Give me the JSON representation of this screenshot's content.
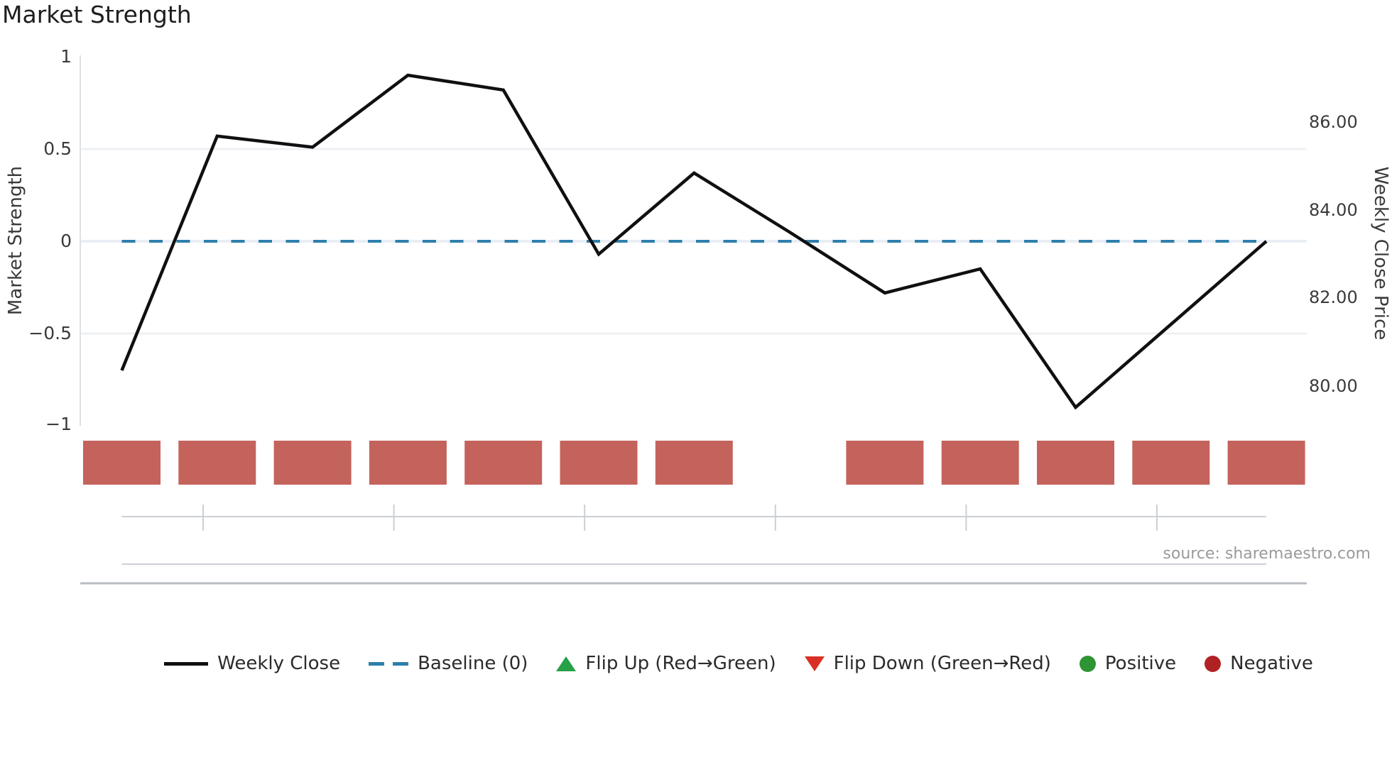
{
  "title": "Market Strength",
  "source": "source: sharemaestro.com",
  "axes": {
    "left": {
      "label": "Market Strength",
      "ticks": [
        "1",
        "0.5",
        "0",
        "−0.5",
        "−1"
      ]
    },
    "right": {
      "label": "Weekly Close Price",
      "ticks": [
        "86.00",
        "84.00",
        "82.00",
        "80.00"
      ]
    }
  },
  "legend": {
    "items": [
      {
        "label": "Weekly Close",
        "marker": "black-line"
      },
      {
        "label": "Baseline (0)",
        "marker": "blue-dashed-line"
      },
      {
        "label": "Flip Up (Red→Green)",
        "marker": "green-up-triangle"
      },
      {
        "label": "Flip Down (Green→Red)",
        "marker": "red-down-triangle"
      },
      {
        "label": "Positive",
        "marker": "green-circle"
      },
      {
        "label": "Negative",
        "marker": "dark-red-circle"
      }
    ]
  },
  "colors": {
    "line": "#101010",
    "baseline": "#2f7fad",
    "flip-up": "#26a148",
    "flip-down": "#d93025",
    "positive": "#2e9434",
    "negative": "#b02124",
    "negative-box": "#c4635c"
  },
  "chart_data": {
    "type": "line",
    "title": "Market Strength",
    "x": [
      1,
      2,
      3,
      4,
      5,
      6,
      7,
      8,
      9,
      10,
      11,
      12,
      13
    ],
    "x_unit": "week",
    "x_tick_labels_visible": false,
    "x_minor_date_ticks": "every 2 weeks, unlabeled",
    "series": [
      {
        "name": "Weekly Close",
        "axis": "left (Market Strength)",
        "values": [
          -0.7,
          0.57,
          0.51,
          0.9,
          0.82,
          -0.07,
          0.37,
          0.05,
          -0.28,
          -0.15,
          -0.9,
          -0.45,
          0.0
        ]
      },
      {
        "name": "Weekly Close (read on right price axis)",
        "axis": "right (Weekly Close Price)",
        "values": [
          80.35,
          85.7,
          85.45,
          87.1,
          86.75,
          83.0,
          84.85,
          83.5,
          82.1,
          82.65,
          79.5,
          81.4,
          83.3
        ]
      }
    ],
    "baseline": {
      "label": "Baseline (0)",
      "value": 0,
      "style": "dashed",
      "color": "#2f7fad"
    },
    "indicator_strip": {
      "description": "weekly sentiment boxes below plot; missing box at week 8",
      "weeks": [
        "negative",
        "negative",
        "negative",
        "negative",
        "negative",
        "negative",
        "negative",
        null,
        "negative",
        "negative",
        "negative",
        "negative",
        "negative"
      ]
    },
    "left_axis": {
      "label": "Market Strength",
      "ticks": [
        1,
        0.5,
        0,
        -0.5,
        -1
      ],
      "range": [
        -1,
        1
      ]
    },
    "right_axis": {
      "label": "Weekly Close Price",
      "ticks": [
        86.0,
        84.0,
        82.0,
        80.0
      ]
    },
    "grid": "horizontal gridlines at 0.5, 0, −0.5 only",
    "legend_position": "bottom center",
    "annotations": [
      "source: sharemaestro.com"
    ]
  }
}
